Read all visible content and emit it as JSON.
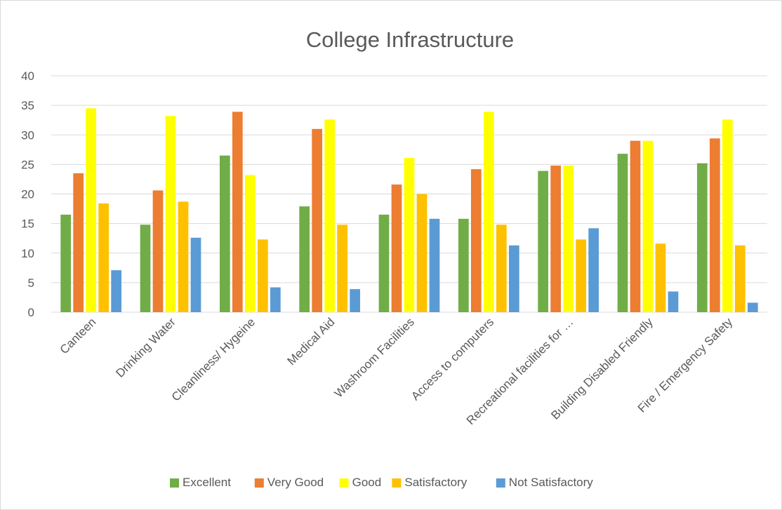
{
  "chart_data": {
    "type": "bar",
    "title": "College Infrastructure",
    "xlabel": "",
    "ylabel": "",
    "ylim": [
      0,
      40
    ],
    "yticks": [
      0,
      5,
      10,
      15,
      20,
      25,
      30,
      35,
      40
    ],
    "grid": true,
    "legend_position": "bottom",
    "categories": [
      "Canteen",
      "Drinking Water",
      "Cleanliness/ Hygeine",
      "Medical Aid",
      "Washroom Facilities",
      "Access to computers",
      "Recreational facilities for …",
      "Building Disabled Friendly",
      "Fire / Emergency Safety"
    ],
    "series": [
      {
        "name": "Excellent",
        "color": "#70ad47",
        "values": [
          16.5,
          14.8,
          26.5,
          17.9,
          16.5,
          15.8,
          23.9,
          26.8,
          25.2
        ]
      },
      {
        "name": "Very Good",
        "color": "#ed7d31",
        "values": [
          23.5,
          20.6,
          33.9,
          31.0,
          21.6,
          24.2,
          24.8,
          29.0,
          29.4
        ]
      },
      {
        "name": "Good",
        "color": "#ffff00",
        "values": [
          34.5,
          33.2,
          23.2,
          32.6,
          26.1,
          33.9,
          24.8,
          29.0,
          32.6
        ]
      },
      {
        "name": "Satisfactory",
        "color": "#ffc000",
        "values": [
          18.4,
          18.7,
          12.3,
          14.8,
          20.0,
          14.8,
          12.3,
          11.6,
          11.3
        ]
      },
      {
        "name": "Not Satisfactory",
        "color": "#5b9bd5",
        "values": [
          7.1,
          12.6,
          4.2,
          3.9,
          15.8,
          11.3,
          14.2,
          3.5,
          1.6
        ]
      }
    ]
  },
  "colors": {
    "gridline": "#d9d9d9",
    "axis_text": "#595959",
    "border": "#d9d9d9"
  }
}
